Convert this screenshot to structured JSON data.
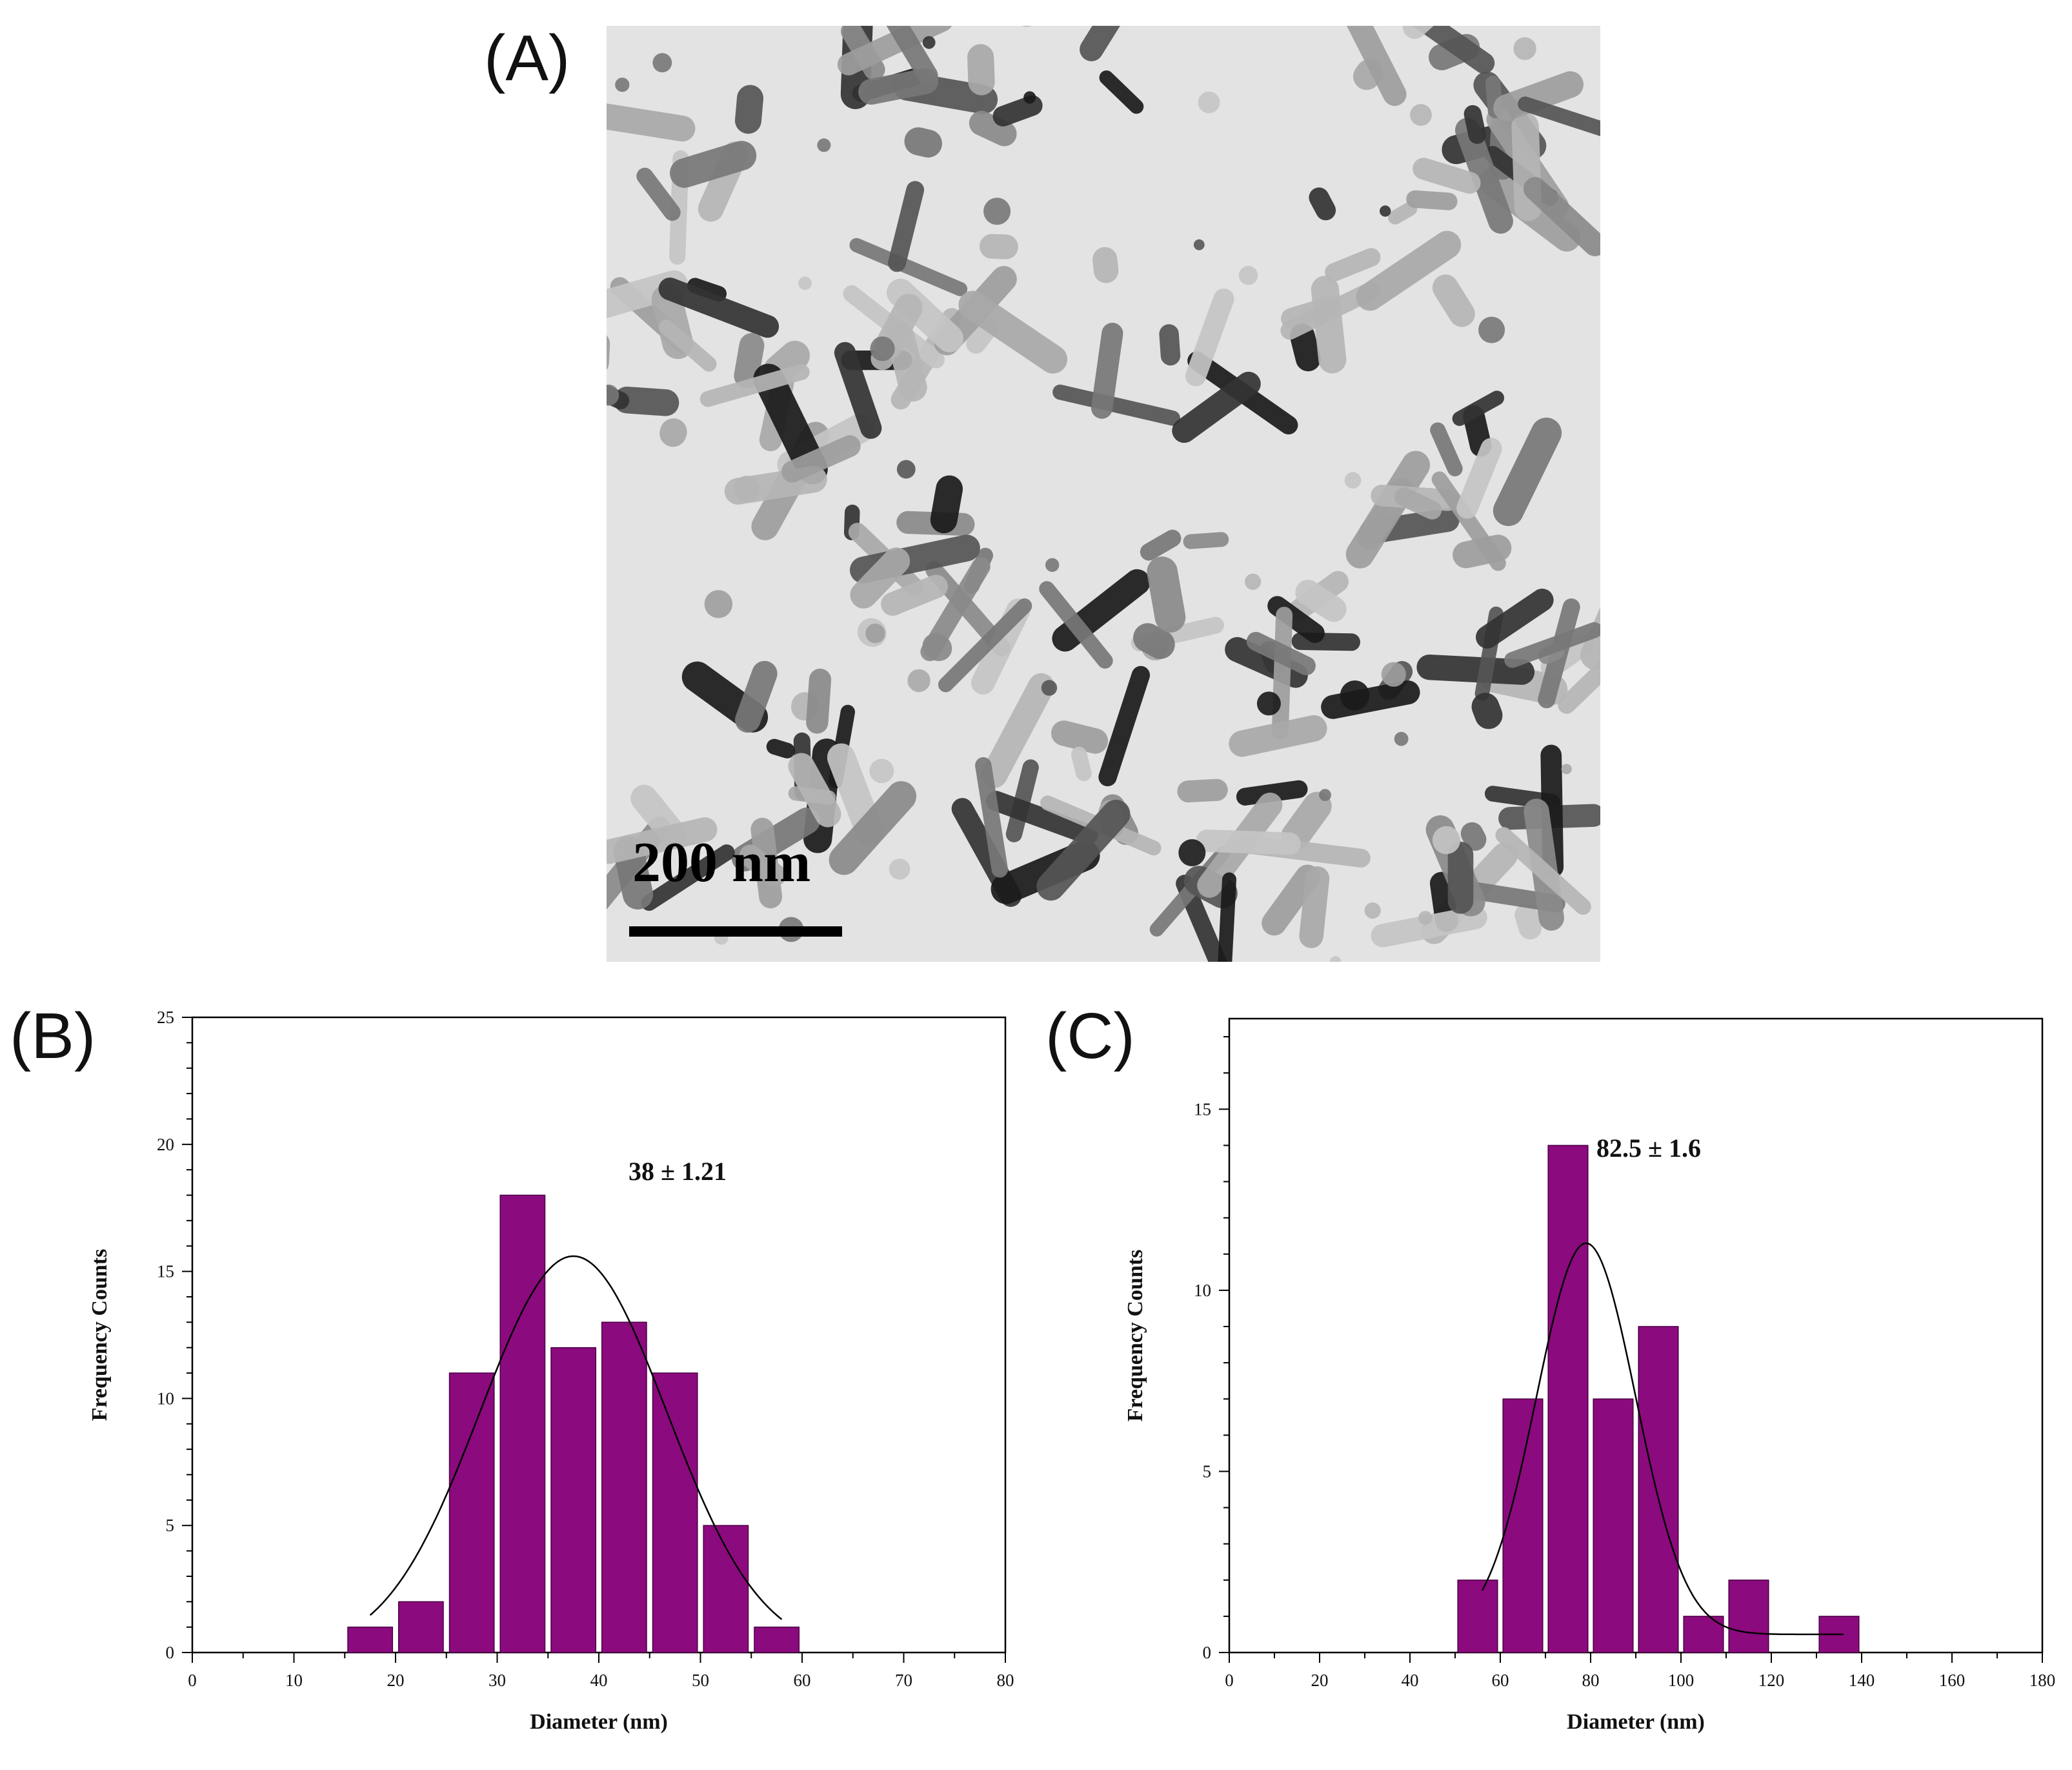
{
  "panels": {
    "a": {
      "label": "(A)",
      "scale_bar": "200 nm"
    },
    "b": {
      "label": "(B)"
    },
    "c": {
      "label": "(C)"
    }
  },
  "colors": {
    "bar": "#8b0a7e",
    "bar_edge": "#4a0043",
    "fit": "#000000"
  },
  "chart_data": [
    {
      "type": "bar",
      "panel": "(B)",
      "xlabel": "Diameter (nm)",
      "ylabel": "Frequency Counts",
      "annotation": "38 ± 1.21",
      "xlim": [
        0,
        80
      ],
      "ylim": [
        0,
        25
      ],
      "xticks": [
        0,
        10,
        20,
        30,
        40,
        50,
        60,
        70,
        80
      ],
      "yticks": [
        0,
        5,
        10,
        15,
        20,
        25
      ],
      "bin_width": 5,
      "bins": [
        {
          "x": 17.5,
          "count": 1
        },
        {
          "x": 22.5,
          "count": 2
        },
        {
          "x": 27.5,
          "count": 11
        },
        {
          "x": 32.5,
          "count": 18
        },
        {
          "x": 37.5,
          "count": 12
        },
        {
          "x": 42.5,
          "count": 13
        },
        {
          "x": 47.5,
          "count": 11
        },
        {
          "x": 52.5,
          "count": 5
        },
        {
          "x": 57.5,
          "count": 1
        }
      ],
      "fit": {
        "type": "gaussian",
        "center": 37.5,
        "amplitude": 15.6,
        "sigma": 9.2,
        "x_range": [
          17.5,
          58
        ]
      }
    },
    {
      "type": "bar",
      "panel": "(C)",
      "xlabel": "Diameter (nm)",
      "ylabel": "Frequency Counts",
      "annotation": "82.5 ± 1.6",
      "xlim": [
        0,
        180
      ],
      "ylim": [
        0,
        17.5
      ],
      "xticks": [
        0,
        20,
        40,
        60,
        80,
        100,
        120,
        140,
        160,
        180
      ],
      "yticks": [
        0,
        5,
        10,
        15
      ],
      "bin_width": 10,
      "bins": [
        {
          "x": 55,
          "count": 2
        },
        {
          "x": 65,
          "count": 7
        },
        {
          "x": 75,
          "count": 14
        },
        {
          "x": 85,
          "count": 7
        },
        {
          "x": 95,
          "count": 9
        },
        {
          "x": 105,
          "count": 1
        },
        {
          "x": 115,
          "count": 2
        },
        {
          "x": 135,
          "count": 1
        }
      ],
      "fit": {
        "type": "gaussian",
        "center": 79,
        "amplitude": 11.3,
        "sigma": 11,
        "baseline": 0.5,
        "x_range": [
          56,
          136
        ]
      }
    }
  ]
}
